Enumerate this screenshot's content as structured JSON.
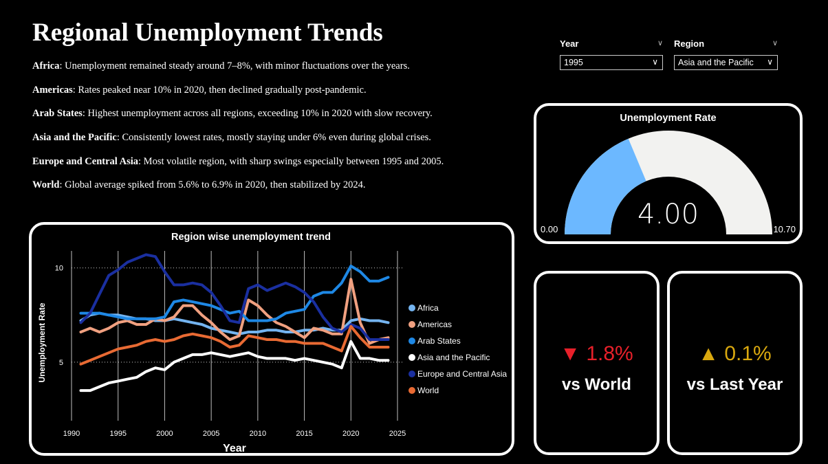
{
  "page": {
    "title": "Regional Unemployment Trends",
    "summary": [
      {
        "region": "Africa",
        "text": ": Unemployment remained steady around 7–8%, with minor fluctuations over the years."
      },
      {
        "region": "Americas",
        "text": ": Rates peaked near 10% in 2020, then declined gradually post-pandemic."
      },
      {
        "region": "Arab States",
        "text": ": Highest unemployment across all regions, exceeding 10% in 2020 with slow recovery."
      },
      {
        "region": "Asia and the Pacific",
        "text": ": Consistently lowest rates, mostly staying under 6% even during global crises."
      },
      {
        "region": "Europe and Central Asia",
        "text": ": Most volatile region, with sharp swings especially between 1995 and 2005."
      },
      {
        "region": "World",
        "text": ": Global average spiked from 5.6% to 6.9% in 2020, then stabilized by 2024."
      }
    ]
  },
  "filters": {
    "year": {
      "label": "Year",
      "value": "1995"
    },
    "region": {
      "label": "Region",
      "value": "Asia and the Pacific"
    }
  },
  "gauge": {
    "title": "Unemployment Rate",
    "value": 4.0,
    "value_text": "4.00",
    "min": 0,
    "max": 10.7,
    "min_text": "0.00",
    "max_text": "10.70",
    "fill_color": "#6CB8FF",
    "track_color": "#F2F2F0"
  },
  "kpis": {
    "world": {
      "arrow": "▼",
      "value": "1.8%",
      "label": "vs World",
      "color": "#E8202A"
    },
    "last_year": {
      "arrow": "▲",
      "value": "0.1%",
      "label": "vs Last Year",
      "color": "#D9A80F"
    }
  },
  "chart_data": {
    "type": "line",
    "title": "Region wise unemployment trend",
    "xlabel": "Year",
    "ylabel": "Unemployment Rate",
    "xlim": [
      1990,
      2025
    ],
    "ylim": [
      1.9,
      10.9
    ],
    "x_ticks": [
      1990,
      1995,
      2000,
      2005,
      2010,
      2015,
      2020,
      2025
    ],
    "y_ticks": [
      5,
      10
    ],
    "grid": {
      "vertical": true,
      "horizontal": "dotted"
    },
    "legend": "right",
    "x": [
      1991,
      1992,
      1993,
      1994,
      1995,
      1996,
      1997,
      1998,
      1999,
      2000,
      2001,
      2002,
      2003,
      2004,
      2005,
      2006,
      2007,
      2008,
      2009,
      2010,
      2011,
      2012,
      2013,
      2014,
      2015,
      2016,
      2017,
      2018,
      2019,
      2020,
      2021,
      2022,
      2023,
      2024
    ],
    "series": [
      {
        "name": "Africa",
        "color": "#74B4F0",
        "values": [
          7.2,
          7.5,
          7.6,
          7.5,
          7.5,
          7.4,
          7.3,
          7.3,
          7.2,
          7.2,
          7.3,
          7.2,
          7.1,
          7.0,
          6.8,
          6.7,
          6.6,
          6.5,
          6.6,
          6.6,
          6.7,
          6.7,
          6.6,
          6.6,
          6.7,
          6.7,
          6.8,
          6.7,
          6.7,
          7.2,
          7.3,
          7.2,
          7.2,
          7.1
        ]
      },
      {
        "name": "Americas",
        "color": "#F0A080",
        "values": [
          6.6,
          6.8,
          6.6,
          6.8,
          7.1,
          7.2,
          7.0,
          7.0,
          7.3,
          7.2,
          7.4,
          8.0,
          8.0,
          7.5,
          7.1,
          6.6,
          6.2,
          6.4,
          8.3,
          8.0,
          7.5,
          7.1,
          6.9,
          6.6,
          6.3,
          6.8,
          6.7,
          6.5,
          6.5,
          9.4,
          7.1,
          6.0,
          6.2,
          6.3
        ]
      },
      {
        "name": "Arab States",
        "color": "#1E88E5",
        "values": [
          7.6,
          7.6,
          7.6,
          7.5,
          7.4,
          7.3,
          7.3,
          7.3,
          7.3,
          7.4,
          8.2,
          8.3,
          8.2,
          8.1,
          8.0,
          7.8,
          7.6,
          7.7,
          7.2,
          7.2,
          7.2,
          7.3,
          7.6,
          7.7,
          7.8,
          8.5,
          8.7,
          8.7,
          9.2,
          10.1,
          9.8,
          9.3,
          9.3,
          9.5
        ]
      },
      {
        "name": "Asia and the Pacific",
        "color": "#FFFFFF",
        "values": [
          3.5,
          3.5,
          3.7,
          3.9,
          4.0,
          4.1,
          4.2,
          4.5,
          4.7,
          4.6,
          5.0,
          5.2,
          5.4,
          5.4,
          5.5,
          5.4,
          5.3,
          5.4,
          5.5,
          5.3,
          5.2,
          5.2,
          5.2,
          5.1,
          5.2,
          5.1,
          5.0,
          4.9,
          4.7,
          6.1,
          5.2,
          5.2,
          5.1,
          5.1
        ]
      },
      {
        "name": "Europe and Central Asia",
        "color": "#1A2FA0",
        "values": [
          7.1,
          7.6,
          8.6,
          9.6,
          9.9,
          10.3,
          10.5,
          10.7,
          10.6,
          9.8,
          9.1,
          9.1,
          9.2,
          9.1,
          8.7,
          8.0,
          7.2,
          7.1,
          8.9,
          9.1,
          8.8,
          9.0,
          9.2,
          9.0,
          8.7,
          8.2,
          7.4,
          6.8,
          6.6,
          7.0,
          6.8,
          6.2,
          6.2,
          6.2
        ]
      },
      {
        "name": "World",
        "color": "#E86A33",
        "values": [
          4.9,
          5.1,
          5.3,
          5.5,
          5.7,
          5.8,
          5.9,
          6.1,
          6.2,
          6.1,
          6.2,
          6.4,
          6.5,
          6.4,
          6.3,
          6.1,
          5.8,
          5.9,
          6.4,
          6.3,
          6.2,
          6.2,
          6.1,
          6.1,
          6.0,
          6.0,
          6.0,
          5.8,
          5.6,
          6.9,
          6.3,
          5.8,
          5.8,
          5.8
        ]
      }
    ]
  }
}
